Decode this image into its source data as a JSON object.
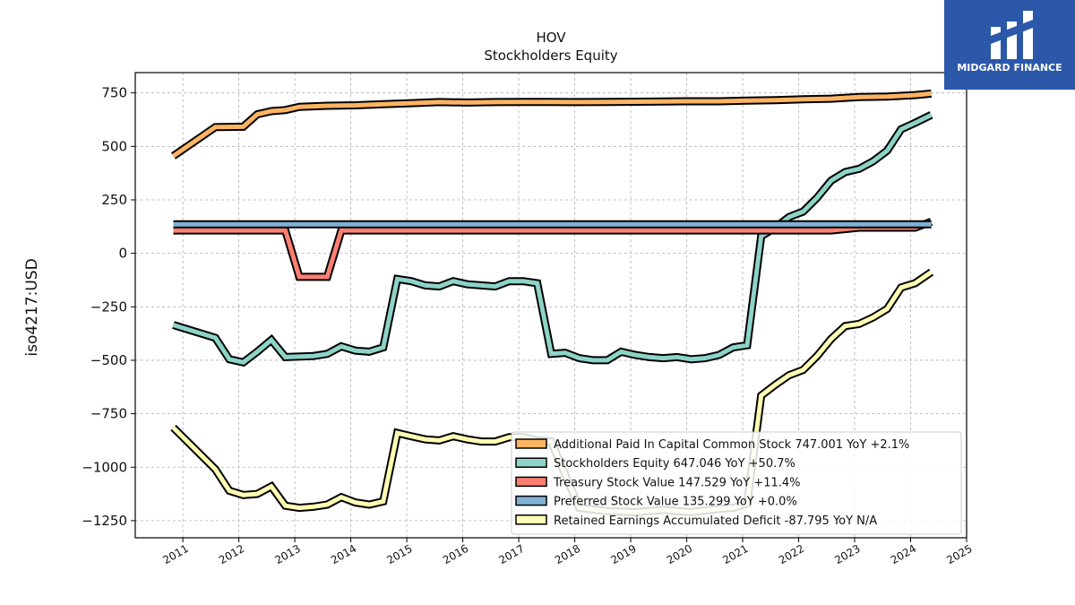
{
  "chart_data": {
    "type": "line",
    "title": "HOV",
    "subtitle": "Stockholders  Equity",
    "ylabel": "iso4217:USD",
    "xlabel": "",
    "xlim": [
      2010.15,
      2025.0
    ],
    "ylim": [
      -1330,
      845
    ],
    "x_ticks": [
      "2011",
      "2012",
      "2013",
      "2014",
      "2015",
      "2016",
      "2017",
      "2018",
      "2019",
      "2020",
      "2021",
      "2022",
      "2023",
      "2024",
      "2025"
    ],
    "y_ticks": [
      750,
      500,
      250,
      0,
      -250,
      -500,
      -750,
      -1000,
      -1250
    ],
    "y_tick_labels": [
      "750",
      "500",
      "250",
      "0",
      "−250",
      "−500",
      "−750",
      "−1000",
      "−1250"
    ],
    "grid": true,
    "legend_position": "lower-right",
    "series": [
      {
        "name": "Additional Paid In Capital Common Stock",
        "legend": "Additional Paid In Capital Common Stock  747.001 YoY +2.1%",
        "color": "#fdb462",
        "x": [
          2010.83,
          2011.58,
          2012.08,
          2012.33,
          2012.58,
          2012.83,
          2013.08,
          2013.58,
          2014.08,
          2014.58,
          2015.08,
          2015.58,
          2016.08,
          2016.58,
          2017.08,
          2017.58,
          2018.08,
          2018.58,
          2019.08,
          2019.58,
          2020.08,
          2020.58,
          2021.08,
          2021.58,
          2022.08,
          2022.58,
          2023.08,
          2023.58,
          2024.08,
          2024.37
        ],
        "values": [
          455,
          590,
          592,
          650,
          665,
          670,
          685,
          690,
          692,
          697,
          702,
          707,
          705,
          707,
          708,
          708,
          707,
          708,
          709,
          710,
          711,
          711,
          714,
          716,
          720,
          723,
          731,
          733,
          740,
          747
        ]
      },
      {
        "name": "Stockholders Equity",
        "legend": "Stockholders Equity  647.046 YoY +50.7%",
        "color": "#8dd3c7",
        "x": [
          2010.83,
          2011.58,
          2011.83,
          2012.08,
          2012.33,
          2012.58,
          2012.83,
          2013.33,
          2013.58,
          2013.83,
          2014.08,
          2014.33,
          2014.58,
          2014.83,
          2015.08,
          2015.33,
          2015.58,
          2015.83,
          2016.08,
          2016.33,
          2016.58,
          2016.83,
          2017.08,
          2017.33,
          2017.58,
          2017.83,
          2018.08,
          2018.33,
          2018.58,
          2018.83,
          2019.08,
          2019.33,
          2019.58,
          2019.83,
          2020.08,
          2020.33,
          2020.58,
          2020.83,
          2021.08,
          2021.33,
          2021.58,
          2021.83,
          2022.08,
          2022.33,
          2022.58,
          2022.83,
          2023.08,
          2023.33,
          2023.58,
          2023.83,
          2024.08,
          2024.37
        ],
        "values": [
          -335,
          -395,
          -495,
          -510,
          -460,
          -405,
          -485,
          -480,
          -470,
          -435,
          -455,
          -460,
          -440,
          -120,
          -130,
          -150,
          -155,
          -130,
          -145,
          -150,
          -155,
          -130,
          -130,
          -140,
          -470,
          -465,
          -490,
          -500,
          -500,
          -460,
          -475,
          -485,
          -490,
          -485,
          -495,
          -490,
          -475,
          -440,
          -430,
          80,
          120,
          170,
          195,
          260,
          340,
          380,
          395,
          430,
          480,
          580,
          610,
          647
        ]
      },
      {
        "name": "Treasury Stock Value",
        "legend": "Treasury Stock Value  147.529 YoY +11.4%",
        "color": "#fb8072",
        "x": [
          2010.83,
          2012.83,
          2013.08,
          2013.58,
          2013.83,
          2014.08,
          2020.08,
          2022.58,
          2023.08,
          2024.08,
          2024.37
        ],
        "values": [
          107,
          107,
          -110,
          -110,
          107,
          107,
          107,
          107,
          120,
          120,
          147.529
        ]
      },
      {
        "name": "Preferred Stock Value",
        "legend": "Preferred Stock Value  135.299 YoY +0.0%",
        "color": "#80b1d3",
        "x": [
          2010.83,
          2024.37
        ],
        "values": [
          135.299,
          135.299
        ]
      },
      {
        "name": "Retained Earnings Accumulated Deficit",
        "legend": "Retained Earnings Accumulated Deficit  -87.795 YoY N/A",
        "color": "#ffffb3",
        "x": [
          2010.83,
          2011.58,
          2011.83,
          2012.08,
          2012.33,
          2012.58,
          2012.83,
          2013.08,
          2013.33,
          2013.58,
          2013.83,
          2014.08,
          2014.33,
          2014.58,
          2014.83,
          2015.08,
          2015.33,
          2015.58,
          2015.83,
          2016.08,
          2016.33,
          2016.58,
          2016.83,
          2017.08,
          2017.33,
          2017.58,
          2018.08,
          2018.58,
          2019.08,
          2019.58,
          2020.08,
          2020.58,
          2020.83,
          2021.08,
          2021.33,
          2021.58,
          2021.83,
          2022.08,
          2022.33,
          2022.58,
          2022.83,
          2023.08,
          2023.33,
          2023.58,
          2023.83,
          2024.08,
          2024.37
        ],
        "values": [
          -815,
          -1010,
          -1110,
          -1130,
          -1125,
          -1090,
          -1180,
          -1190,
          -1185,
          -1175,
          -1140,
          -1165,
          -1175,
          -1160,
          -840,
          -855,
          -870,
          -875,
          -855,
          -870,
          -880,
          -880,
          -860,
          -860,
          -875,
          -880,
          -1190,
          -1205,
          -1210,
          -1200,
          -1210,
          -1195,
          -1190,
          -1170,
          -665,
          -615,
          -570,
          -545,
          -480,
          -400,
          -340,
          -330,
          -300,
          -260,
          -160,
          -140,
          -87.795
        ]
      }
    ]
  },
  "logo": {
    "text": "MIDGARD FINANCE",
    "color": "#2b58a8"
  }
}
